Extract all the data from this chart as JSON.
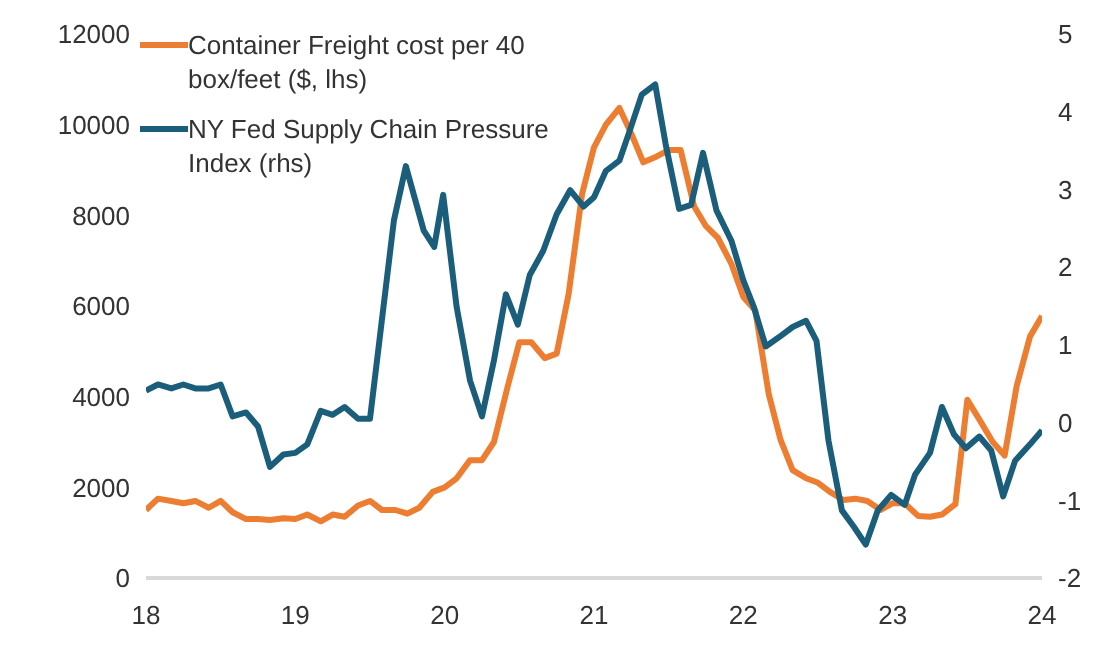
{
  "chart_data": {
    "type": "line",
    "xlim": [
      18,
      24
    ],
    "xticks": [
      18,
      19,
      20,
      21,
      22,
      23,
      24
    ],
    "ylim": [
      0,
      12000
    ],
    "yticks": [
      0,
      2000,
      4000,
      6000,
      8000,
      10000,
      12000
    ],
    "y2lim": [
      -2,
      5
    ],
    "y2ticks": [
      -2,
      -1,
      0,
      1,
      2,
      3,
      4,
      5
    ],
    "grid": false,
    "legend": "top left",
    "marker": "none",
    "line_style": "solid",
    "series": [
      {
        "name": "Container Freight cost per 40 box/feet ($, lhs)",
        "color": "#ed7d31",
        "x": [
          18,
          18.08,
          18.17,
          18.25,
          18.33,
          18.42,
          18.5,
          18.58,
          18.67,
          18.75,
          18.83,
          18.92,
          19,
          19.08,
          19.17,
          19.25,
          19.33,
          19.42,
          19.5,
          19.58,
          19.67,
          19.75,
          19.83,
          19.92,
          20,
          20.08,
          20.17,
          20.25,
          20.33,
          20.42,
          20.5,
          20.58,
          20.67,
          20.75,
          20.83,
          20.92,
          21,
          21.08,
          21.17,
          21.25,
          21.33,
          21.42,
          21.5,
          21.58,
          21.67,
          21.75,
          21.83,
          21.92,
          22,
          22.08,
          22.17,
          22.25,
          22.33,
          22.42,
          22.5,
          22.58,
          22.67,
          22.75,
          22.83,
          22.92,
          23,
          23.08,
          23.17,
          23.25,
          23.33,
          23.42,
          23.5,
          23.58,
          23.67,
          23.75,
          23.83,
          23.92,
          24
        ],
        "values": [
          1500,
          1750,
          1700,
          1650,
          1700,
          1550,
          1700,
          1450,
          1300,
          1300,
          1280,
          1320,
          1300,
          1400,
          1250,
          1400,
          1350,
          1600,
          1700,
          1500,
          1500,
          1420,
          1550,
          1900,
          2000,
          2200,
          2600,
          2600,
          3000,
          4200,
          5200,
          5200,
          4850,
          4950,
          6260,
          8470,
          9500,
          10000,
          10370,
          9800,
          9170,
          9300,
          9440,
          9440,
          8200,
          7760,
          7500,
          6930,
          6200,
          5900,
          4060,
          3040,
          2380,
          2200,
          2100,
          1900,
          1720,
          1750,
          1700,
          1500,
          1650,
          1650,
          1370,
          1350,
          1400,
          1630,
          3930,
          3500,
          3000,
          2700,
          4230,
          5330,
          5780
        ]
      },
      {
        "name": "NY Fed Supply Chain Pressure Index (rhs)",
        "color": "#1b5e7b",
        "axis": "y2",
        "x": [
          18,
          18.08,
          18.17,
          18.25,
          18.33,
          18.42,
          18.5,
          18.58,
          18.67,
          18.75,
          18.83,
          18.92,
          19,
          19.08,
          19.17,
          19.25,
          19.33,
          19.42,
          19.5,
          19.66,
          19.74,
          19.86,
          19.93,
          19.99,
          20.08,
          20.17,
          20.25,
          20.33,
          20.41,
          20.49,
          20.57,
          20.66,
          20.75,
          20.84,
          20.93,
          21,
          21.08,
          21.17,
          21.24,
          21.32,
          21.41,
          21.48,
          21.57,
          21.65,
          21.73,
          21.82,
          21.92,
          22,
          22.07,
          22.15,
          22.24,
          22.33,
          22.42,
          22.49,
          22.57,
          22.66,
          22.74,
          22.82,
          22.9,
          22.99,
          23.08,
          23.15,
          23.25,
          23.33,
          23.41,
          23.49,
          23.58,
          23.66,
          23.74,
          23.82,
          23.92,
          24
        ],
        "values": [
          0.41,
          0.49,
          0.44,
          0.49,
          0.44,
          0.44,
          0.49,
          0.08,
          0.13,
          -0.05,
          -0.57,
          -0.41,
          -0.39,
          -0.28,
          0.15,
          0.1,
          0.2,
          0.05,
          0.05,
          2.6,
          3.3,
          2.47,
          2.26,
          2.93,
          1.49,
          0.54,
          0.08,
          0.8,
          1.65,
          1.26,
          1.9,
          2.21,
          2.68,
          2.99,
          2.78,
          2.9,
          3.24,
          3.37,
          3.76,
          4.22,
          4.35,
          3.58,
          2.75,
          2.8,
          3.47,
          2.73,
          2.34,
          1.83,
          1.49,
          0.98,
          1.1,
          1.23,
          1.31,
          1.05,
          -0.23,
          -1.13,
          -1.34,
          -1.57,
          -1.13,
          -0.93,
          -1.06,
          -0.67,
          -0.39,
          0.2,
          -0.15,
          -0.33,
          -0.18,
          -0.36,
          -0.95,
          -0.49,
          -0.28,
          -0.1
        ]
      }
    ]
  }
}
